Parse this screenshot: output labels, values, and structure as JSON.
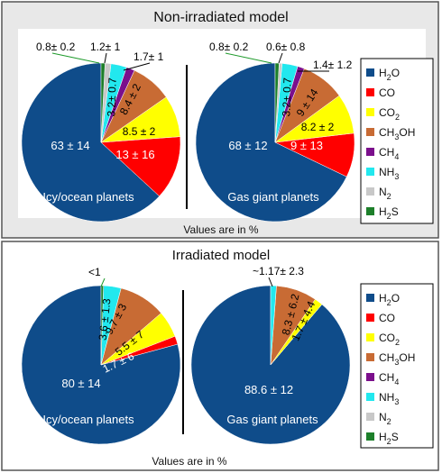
{
  "colors": {
    "H2O": "#0f4c8a",
    "CO": "#ff0000",
    "CO2": "#ffff00",
    "CH3OH": "#c86b34",
    "CH4": "#7b0f8c",
    "NH3": "#22e8ee",
    "N2": "#c8c8c8",
    "H2S": "#1d7f2a",
    "panel_bg": "#e8e8e8",
    "callout": "#1d9a2a"
  },
  "legend": [
    {
      "key": "H2O",
      "base": "H",
      "sub": "2",
      "rest": "O"
    },
    {
      "key": "CO",
      "base": "CO",
      "sub": "",
      "rest": ""
    },
    {
      "key": "CO2",
      "base": "CO",
      "sub": "2",
      "rest": ""
    },
    {
      "key": "CH3OH",
      "base": "CH",
      "sub": "3",
      "rest": "OH"
    },
    {
      "key": "CH4",
      "base": "CH",
      "sub": "4",
      "rest": ""
    },
    {
      "key": "NH3",
      "base": "NH",
      "sub": "3",
      "rest": ""
    },
    {
      "key": "N2",
      "base": "N",
      "sub": "2",
      "rest": ""
    },
    {
      "key": "H2S",
      "base": "H",
      "sub": "2",
      "rest": "S"
    }
  ],
  "chart_data": [
    {
      "type": "pie",
      "model": "Non-irradiated model",
      "title": "Icy/ocean planets",
      "units": "%",
      "footnote": "Values are in %",
      "slices": [
        {
          "name": "H2O",
          "value": 63,
          "label": "63 ± 14"
        },
        {
          "name": "CO",
          "value": 13,
          "label": "13 ± 16"
        },
        {
          "name": "CO2",
          "value": 8.5,
          "label": "8.5 ± 2"
        },
        {
          "name": "CH3OH",
          "value": 8.4,
          "label": "8.4 ± 2"
        },
        {
          "name": "CH4",
          "value": 1.7,
          "label": "1.7± 1"
        },
        {
          "name": "NH3",
          "value": 3.2,
          "label": "3.2± 0.7"
        },
        {
          "name": "N2",
          "value": 1.2,
          "label": "1.2± 1"
        },
        {
          "name": "H2S",
          "value": 0.8,
          "label": "0.8± 0.2"
        }
      ]
    },
    {
      "type": "pie",
      "model": "Non-irradiated model",
      "title": "Gas giant planets",
      "units": "%",
      "footnote": "Values are in %",
      "slices": [
        {
          "name": "H2O",
          "value": 68,
          "label": "68 ± 12"
        },
        {
          "name": "CO",
          "value": 9,
          "label": "9 ± 13"
        },
        {
          "name": "CO2",
          "value": 8.2,
          "label": "8.2 ± 2"
        },
        {
          "name": "CH3OH",
          "value": 9,
          "label": "9 ± 14"
        },
        {
          "name": "CH4",
          "value": 1.4,
          "label": "1.4± 1.2"
        },
        {
          "name": "NH3",
          "value": 3.2,
          "label": "3.2± 0.7"
        },
        {
          "name": "N2",
          "value": 0.6,
          "label": "0.6± 0.8"
        },
        {
          "name": "H2S",
          "value": 0.8,
          "label": "0.8± 0.2"
        }
      ]
    },
    {
      "type": "pie",
      "model": "Irradiated model",
      "title": "Icy/ocean planets",
      "units": "%",
      "footnote": "Values are in %",
      "slices": [
        {
          "name": "H2O",
          "value": 80,
          "label": "80 ± 14"
        },
        {
          "name": "CO",
          "value": 1.7,
          "label": "1.7 ± 6"
        },
        {
          "name": "CO2",
          "value": 5.5,
          "label": "5.5 ± 7"
        },
        {
          "name": "CH3OH",
          "value": 9.7,
          "label": "9.7 ± 3"
        },
        {
          "name": "NH3",
          "value": 3.6,
          "label": "3.6 ± 1.3"
        },
        {
          "name": "H2S",
          "value": 0.5,
          "label": "<1"
        }
      ]
    },
    {
      "type": "pie",
      "model": "Irradiated model",
      "title": "Gas giant planets",
      "units": "%",
      "footnote": "Values are in %",
      "slices": [
        {
          "name": "H2O",
          "value": 88.6,
          "label": "88.6 ± 12"
        },
        {
          "name": "CO2",
          "value": 1.7,
          "label": "1.7 ± 4.4"
        },
        {
          "name": "CH3OH",
          "value": 8.3,
          "label": "8.3 ± 6.2"
        },
        {
          "name": "NH3",
          "value": 1.17,
          "label": "~1.17± 2.3"
        }
      ]
    }
  ]
}
